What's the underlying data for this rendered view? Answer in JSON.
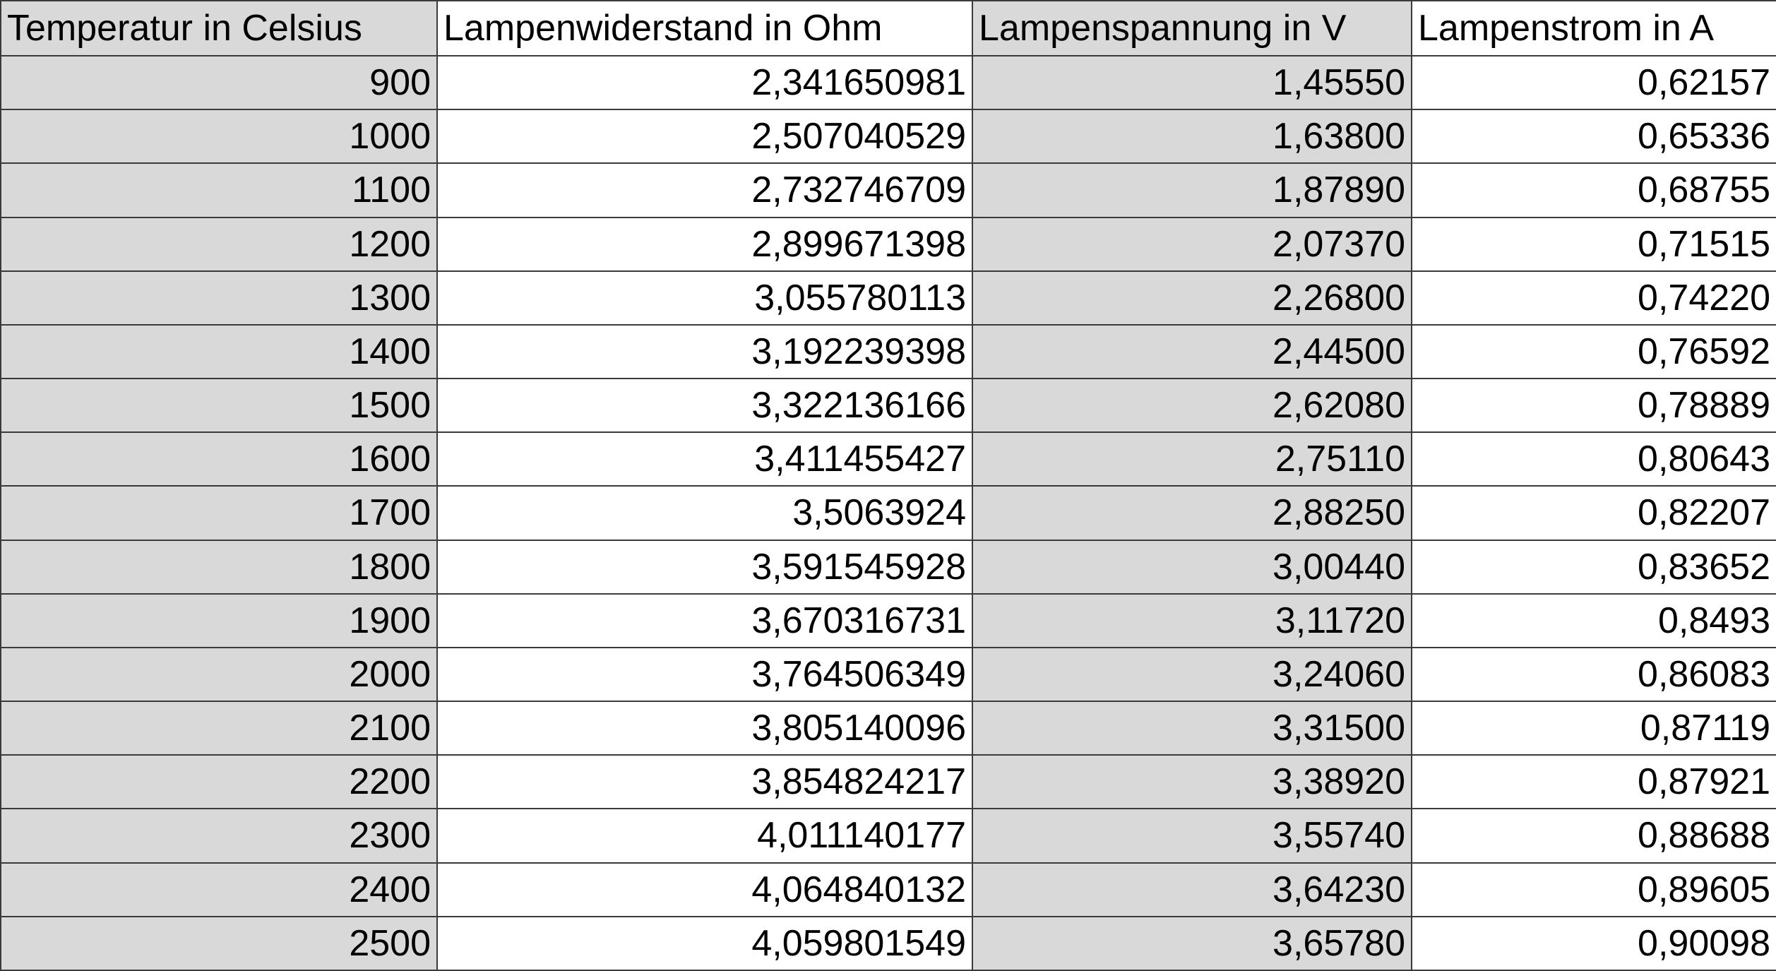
{
  "table": {
    "headers": [
      "Temperatur in Celsius",
      "Lampenwiderstand in Ohm",
      "Lampenspannung in V",
      "Lampenstrom in A"
    ],
    "shaded_columns": [
      0,
      2
    ],
    "rows": [
      [
        "900",
        "2,341650981",
        "1,45550",
        "0,62157"
      ],
      [
        "1000",
        "2,507040529",
        "1,63800",
        "0,65336"
      ],
      [
        "1100",
        "2,732746709",
        "1,87890",
        "0,68755"
      ],
      [
        "1200",
        "2,899671398",
        "2,07370",
        "0,71515"
      ],
      [
        "1300",
        "3,055780113",
        "2,26800",
        "0,74220"
      ],
      [
        "1400",
        "3,192239398",
        "2,44500",
        "0,76592"
      ],
      [
        "1500",
        "3,322136166",
        "2,62080",
        "0,78889"
      ],
      [
        "1600",
        "3,411455427",
        "2,75110",
        "0,80643"
      ],
      [
        "1700",
        "3,5063924",
        "2,88250",
        "0,82207"
      ],
      [
        "1800",
        "3,591545928",
        "3,00440",
        "0,83652"
      ],
      [
        "1900",
        "3,670316731",
        "3,11720",
        "0,8493"
      ],
      [
        "2000",
        "3,764506349",
        "3,24060",
        "0,86083"
      ],
      [
        "2100",
        "3,805140096",
        "3,31500",
        "0,87119"
      ],
      [
        "2200",
        "3,854824217",
        "3,38920",
        "0,87921"
      ],
      [
        "2300",
        "4,011140177",
        "3,55740",
        "0,88688"
      ],
      [
        "2400",
        "4,064840132",
        "3,64230",
        "0,89605"
      ],
      [
        "2500",
        "4,059801549",
        "3,65780",
        "0,90098"
      ]
    ],
    "colors": {
      "shade": "#d9d9d9",
      "grid": "#3a3a3a",
      "text": "#000000"
    }
  }
}
